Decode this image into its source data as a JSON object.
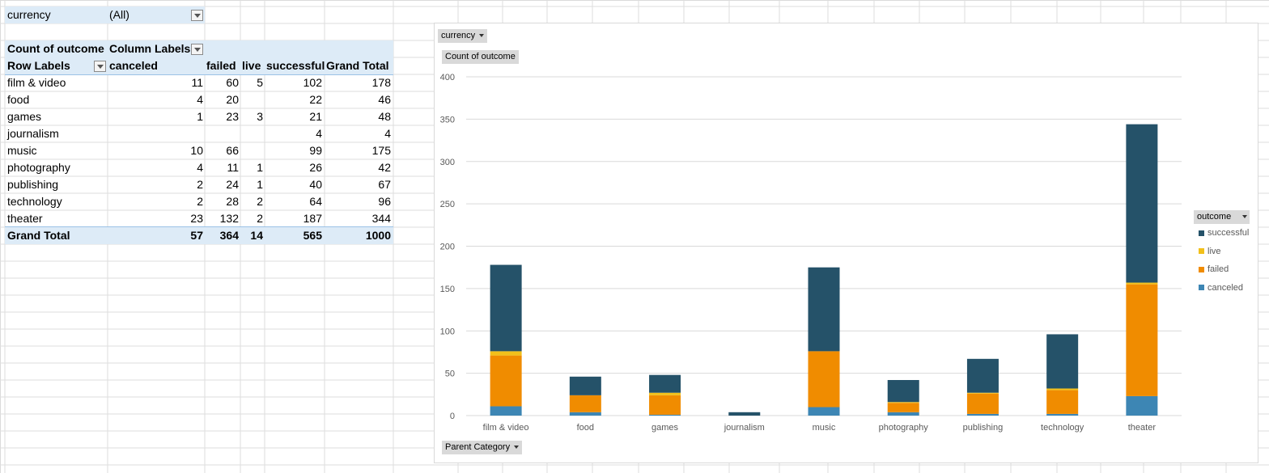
{
  "filter": {
    "label": "currency",
    "value": "(All)"
  },
  "pivot": {
    "value_field": "Count of outcome",
    "column_labels": "Column Labels",
    "row_labels": "Row Labels",
    "columns": [
      "canceled",
      "failed",
      "live",
      "successful",
      "Grand Total"
    ],
    "rows": [
      {
        "label": "film & video",
        "canceled": "11",
        "failed": "60",
        "live": "5",
        "successful": "102",
        "total": "178"
      },
      {
        "label": "food",
        "canceled": "4",
        "failed": "20",
        "live": "",
        "successful": "22",
        "total": "46"
      },
      {
        "label": "games",
        "canceled": "1",
        "failed": "23",
        "live": "3",
        "successful": "21",
        "total": "48"
      },
      {
        "label": "journalism",
        "canceled": "",
        "failed": "",
        "live": "",
        "successful": "4",
        "total": "4"
      },
      {
        "label": "music",
        "canceled": "10",
        "failed": "66",
        "live": "",
        "successful": "99",
        "total": "175"
      },
      {
        "label": "photography",
        "canceled": "4",
        "failed": "11",
        "live": "1",
        "successful": "26",
        "total": "42"
      },
      {
        "label": "publishing",
        "canceled": "2",
        "failed": "24",
        "live": "1",
        "successful": "40",
        "total": "67"
      },
      {
        "label": "technology",
        "canceled": "2",
        "failed": "28",
        "live": "2",
        "successful": "64",
        "total": "96"
      },
      {
        "label": "theater",
        "canceled": "23",
        "failed": "132",
        "live": "2",
        "successful": "187",
        "total": "344"
      }
    ],
    "grand_total": {
      "label": "Grand Total",
      "canceled": "57",
      "failed": "364",
      "live": "14",
      "successful": "565",
      "total": "1000"
    }
  },
  "chart_buttons": {
    "currency": "currency",
    "values": "Count of outcome",
    "axis": "Parent Category",
    "legend": "outcome"
  },
  "colors": {
    "successful": "#255269",
    "live": "#f2c01a",
    "failed": "#f08c00",
    "canceled": "#3d86b4",
    "gridline": "#d9d9d9",
    "header_band": "#ddebf7"
  },
  "chart_data": {
    "type": "bar",
    "stacked": true,
    "categories": [
      "film & video",
      "food",
      "games",
      "journalism",
      "music",
      "photography",
      "publishing",
      "technology",
      "theater"
    ],
    "series": [
      {
        "name": "canceled",
        "values": [
          11,
          4,
          1,
          0,
          10,
          4,
          2,
          2,
          23
        ]
      },
      {
        "name": "failed",
        "values": [
          60,
          20,
          23,
          0,
          66,
          11,
          24,
          28,
          132
        ]
      },
      {
        "name": "live",
        "values": [
          5,
          0,
          3,
          0,
          0,
          1,
          1,
          2,
          2
        ]
      },
      {
        "name": "successful",
        "values": [
          102,
          22,
          21,
          4,
          99,
          26,
          40,
          64,
          187
        ]
      }
    ],
    "legend_order": [
      "successful",
      "live",
      "failed",
      "canceled"
    ],
    "ylim": [
      0,
      400
    ],
    "yticks": [
      0,
      50,
      100,
      150,
      200,
      250,
      300,
      350,
      400
    ],
    "grid": true,
    "legend_position": "right"
  }
}
